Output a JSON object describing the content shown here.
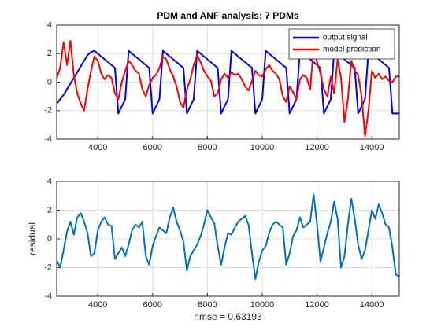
{
  "chart_data": [
    {
      "type": "line",
      "title": "PDM and ANF analysis: 7 PDMs",
      "x": [
        2500,
        2625,
        2750,
        2875,
        3000,
        3125,
        3250,
        3375,
        3500,
        3625,
        3750,
        3875,
        4000,
        4125,
        4250,
        4375,
        4500,
        4625,
        4750,
        4875,
        5000,
        5125,
        5250,
        5375,
        5500,
        5625,
        5750,
        5875,
        6000,
        6125,
        6250,
        6375,
        6500,
        6625,
        6750,
        6875,
        7000,
        7125,
        7250,
        7375,
        7500,
        7625,
        7750,
        7875,
        8000,
        8125,
        8250,
        8375,
        8500,
        8625,
        8750,
        8875,
        9000,
        9125,
        9250,
        9375,
        9500,
        9625,
        9750,
        9875,
        10000,
        10125,
        10250,
        10375,
        10500,
        10625,
        10750,
        10875,
        11000,
        11125,
        11250,
        11375,
        11500,
        11625,
        11750,
        11875,
        12000,
        12125,
        12250,
        12375,
        12500,
        12625,
        12750,
        12875,
        13000,
        13125,
        13250,
        13375,
        13500,
        13625,
        13750,
        13875,
        14000,
        14125,
        14250,
        14375,
        14500,
        14625,
        14750,
        14875,
        15000
      ],
      "series": [
        {
          "name": "output signal",
          "color": "#0000ff",
          "values": [
            -1.5,
            -1.2,
            -0.9,
            -0.5,
            -0.1,
            0.3,
            0.7,
            1.1,
            1.5,
            1.9,
            2.1,
            2.2,
            2.0,
            1.8,
            1.6,
            1.4,
            1.2,
            1.0,
            -2.2,
            -1.7,
            -1.2,
            2.2,
            2.0,
            1.8,
            1.6,
            1.4,
            1.2,
            1.0,
            -2.2,
            -1.7,
            -1.2,
            2.2,
            2.0,
            1.8,
            1.6,
            1.4,
            1.2,
            1.0,
            -2.2,
            -1.7,
            -1.2,
            2.2,
            2.0,
            1.8,
            1.6,
            1.4,
            1.2,
            1.0,
            -2.2,
            -1.7,
            -1.2,
            2.2,
            2.0,
            1.8,
            1.6,
            1.4,
            1.2,
            1.0,
            -2.2,
            -1.7,
            -1.2,
            2.2,
            2.0,
            1.8,
            1.6,
            1.4,
            1.2,
            1.0,
            -2.2,
            -1.7,
            -1.2,
            2.2,
            2.0,
            1.8,
            1.6,
            1.4,
            1.2,
            1.0,
            -2.2,
            -1.7,
            -1.2,
            2.2,
            2.0,
            1.8,
            1.6,
            1.4,
            1.2,
            1.0,
            -2.2,
            -1.7,
            -1.2,
            2.2,
            2.0,
            1.8,
            1.6,
            1.4,
            1.2,
            1.0,
            -2.2,
            -2.2,
            -2.2
          ]
        },
        {
          "name": "model prediction",
          "color": "#ff0000",
          "values": [
            0.3,
            1.0,
            2.8,
            1.2,
            2.9,
            0.5,
            -0.8,
            -1.5,
            -2.0,
            -0.5,
            0.8,
            1.8,
            1.5,
            0.6,
            0.2,
            0.5,
            0.3,
            -0.8,
            -1.2,
            0.0,
            0.8,
            1.5,
            1.2,
            0.8,
            0.6,
            -0.5,
            -1.0,
            -0.2,
            0.3,
            0.5,
            1.0,
            1.8,
            1.6,
            0.9,
            0.4,
            -0.3,
            -1.4,
            -1.8,
            -0.5,
            0.2,
            1.2,
            1.9,
            1.4,
            0.8,
            0.4,
            0.1,
            -1.0,
            -0.8,
            0.2,
            0.6,
            0.3,
            0.7,
            0.5,
            0.6,
            0.2,
            -0.3,
            -0.6,
            0.1,
            0.8,
            0.5,
            0.4,
            0.9,
            1.2,
            0.8,
            0.6,
            0.2,
            -1.0,
            -1.4,
            -0.3,
            -0.7,
            -1.2,
            0.2,
            0.5,
            0.3,
            -0.5,
            2.4,
            1.4,
            0.6,
            -0.5,
            -1.0,
            0.4,
            -0.8,
            1.6,
            0.3,
            -2.8,
            -1.2,
            1.5,
            0.8,
            0.5,
            -1.0,
            -3.8,
            -2.0,
            0.8,
            0.3,
            0.6,
            0.2,
            0.4,
            0.1,
            0.0,
            0.4,
            0.4
          ]
        }
      ],
      "xlim": [
        2500,
        15000
      ],
      "ylim": [
        -4,
        4
      ],
      "xticks": [
        4000,
        6000,
        8000,
        10000,
        12000,
        14000
      ],
      "yticks": [
        -4,
        -2,
        0,
        2,
        4
      ],
      "grid": true,
      "legend": "upper right"
    },
    {
      "type": "line",
      "ylabel": "residual",
      "xlabel": "nmse = 0.63193",
      "x": [
        2500,
        2625,
        2750,
        2875,
        3000,
        3125,
        3250,
        3375,
        3500,
        3625,
        3750,
        3875,
        4000,
        4125,
        4250,
        4375,
        4500,
        4625,
        4750,
        4875,
        5000,
        5125,
        5250,
        5375,
        5500,
        5625,
        5750,
        5875,
        6000,
        6125,
        6250,
        6375,
        6500,
        6625,
        6750,
        6875,
        7000,
        7125,
        7250,
        7375,
        7500,
        7625,
        7750,
        7875,
        8000,
        8125,
        8250,
        8375,
        8500,
        8625,
        8750,
        8875,
        9000,
        9125,
        9250,
        9375,
        9500,
        9625,
        9750,
        9875,
        10000,
        10125,
        10250,
        10375,
        10500,
        10625,
        10750,
        10875,
        11000,
        11125,
        11250,
        11375,
        11500,
        11625,
        11750,
        11875,
        12000,
        12125,
        12250,
        12375,
        12500,
        12625,
        12750,
        12875,
        13000,
        13125,
        13250,
        13375,
        13500,
        13625,
        13750,
        13875,
        14000,
        14125,
        14250,
        14375,
        14500,
        14625,
        14750,
        14875,
        15000
      ],
      "series": [
        {
          "color": "#0072bd",
          "values": [
            -1.5,
            -2.0,
            -0.8,
            0.5,
            1.2,
            0.3,
            1.5,
            1.8,
            1.2,
            0.4,
            -1.2,
            -1.0,
            0.6,
            1.2,
            1.5,
            1.0,
            0.9,
            -1.4,
            -1.0,
            -0.6,
            -1.2,
            -0.4,
            0.6,
            1.0,
            0.8,
            1.2,
            -1.2,
            -1.8,
            -0.5,
            0.2,
            0.8,
            0.6,
            0.4,
            1.5,
            2.2,
            1.2,
            0.6,
            -0.2,
            -2.2,
            -1.2,
            -0.8,
            -0.4,
            0.2,
            1.0,
            2.0,
            1.5,
            1.1,
            -0.5,
            -1.8,
            -0.6,
            0.4,
            0.3,
            0.8,
            1.2,
            1.4,
            1.6,
            1.0,
            -1.0,
            -2.8,
            -1.6,
            -0.8,
            -0.5,
            0.4,
            1.0,
            1.2,
            1.0,
            0.8,
            -1.8,
            -1.0,
            0.2,
            0.6,
            1.5,
            0.8,
            1.0,
            1.2,
            3.1,
            1.0,
            -1.6,
            -0.6,
            0.4,
            1.2,
            2.6,
            1.4,
            -2.0,
            -1.2,
            1.0,
            2.8,
            1.4,
            -0.4,
            -1.4,
            -0.8,
            0.6,
            2.0,
            1.4,
            2.4,
            1.8,
            1.0,
            0.8,
            -0.6,
            -2.5,
            -2.6
          ]
        }
      ],
      "xlim": [
        2500,
        15000
      ],
      "ylim": [
        -4,
        4
      ],
      "xticks": [
        4000,
        6000,
        8000,
        10000,
        12000,
        14000
      ],
      "yticks": [
        -4,
        -2,
        0,
        2,
        4
      ],
      "grid": true
    }
  ]
}
